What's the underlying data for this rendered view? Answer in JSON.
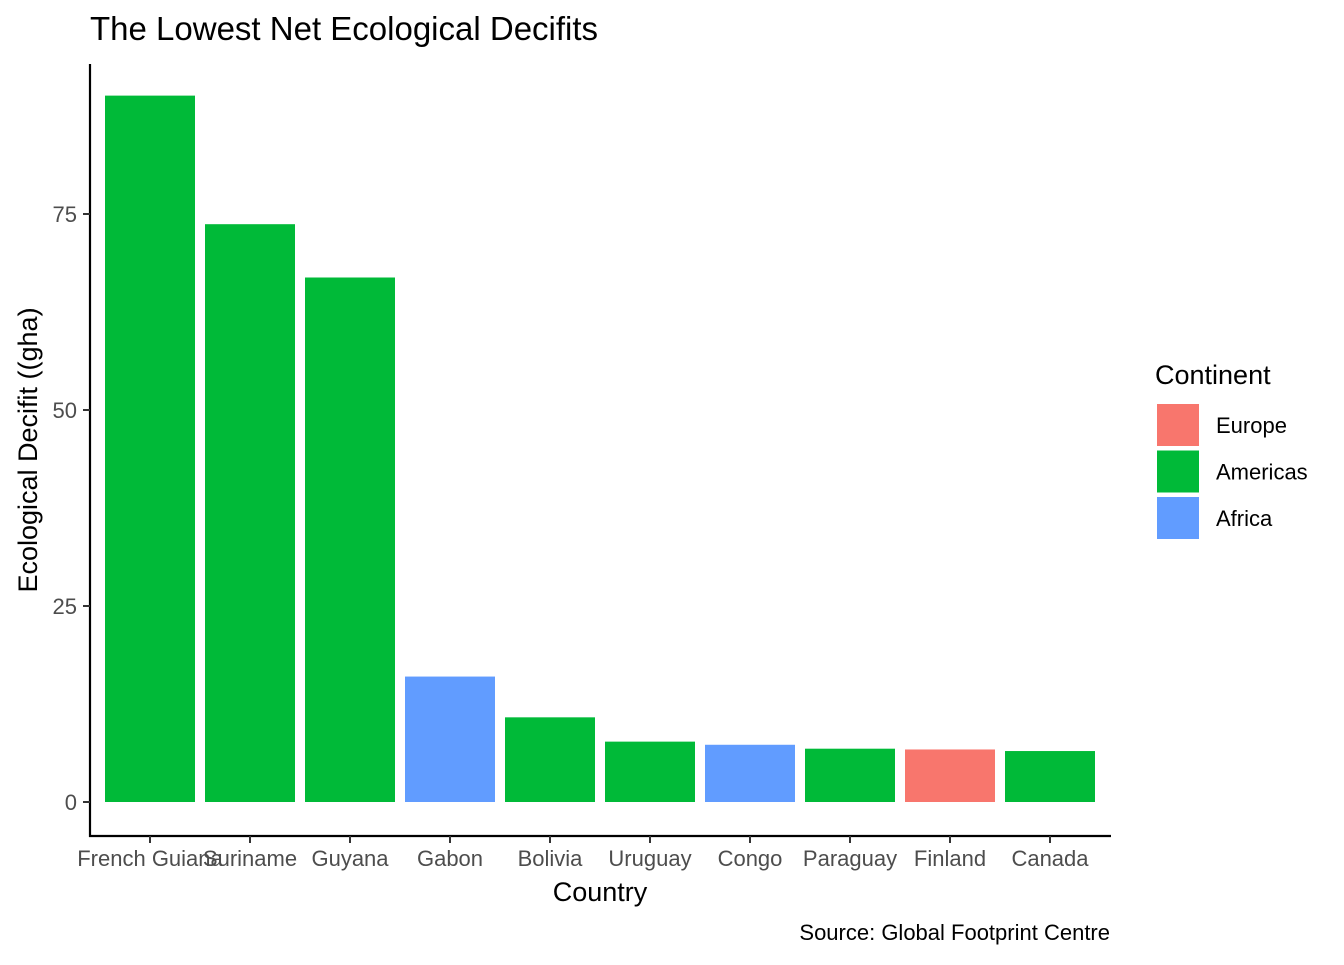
{
  "chart_data": {
    "type": "bar",
    "title": "The Lowest Net Ecological Decifits",
    "xlabel": "Country",
    "ylabel": "Ecological Decifit ((gha)",
    "caption": "Source: Global Footprint Centre",
    "categories": [
      "French Guiana",
      "Suriname",
      "Guyana",
      "Gabon",
      "Bolivia",
      "Uruguay",
      "Congo",
      "Paraguay",
      "Finland",
      "Canada"
    ],
    "values": [
      90.1,
      73.7,
      66.9,
      16.0,
      10.8,
      7.7,
      7.3,
      6.8,
      6.7,
      6.5
    ],
    "groups": [
      "Americas",
      "Americas",
      "Americas",
      "Africa",
      "Americas",
      "Americas",
      "Africa",
      "Americas",
      "Europe",
      "Americas"
    ],
    "ylim": [
      0,
      94.6
    ],
    "yticks": [
      0,
      25,
      50,
      75
    ],
    "grid": false,
    "legend": {
      "title": "Continent",
      "position": "right",
      "entries": [
        {
          "label": "Europe",
          "color": "#F8766D"
        },
        {
          "label": "Americas",
          "color": "#00BA38"
        },
        {
          "label": "Africa",
          "color": "#619CFF"
        }
      ]
    }
  }
}
